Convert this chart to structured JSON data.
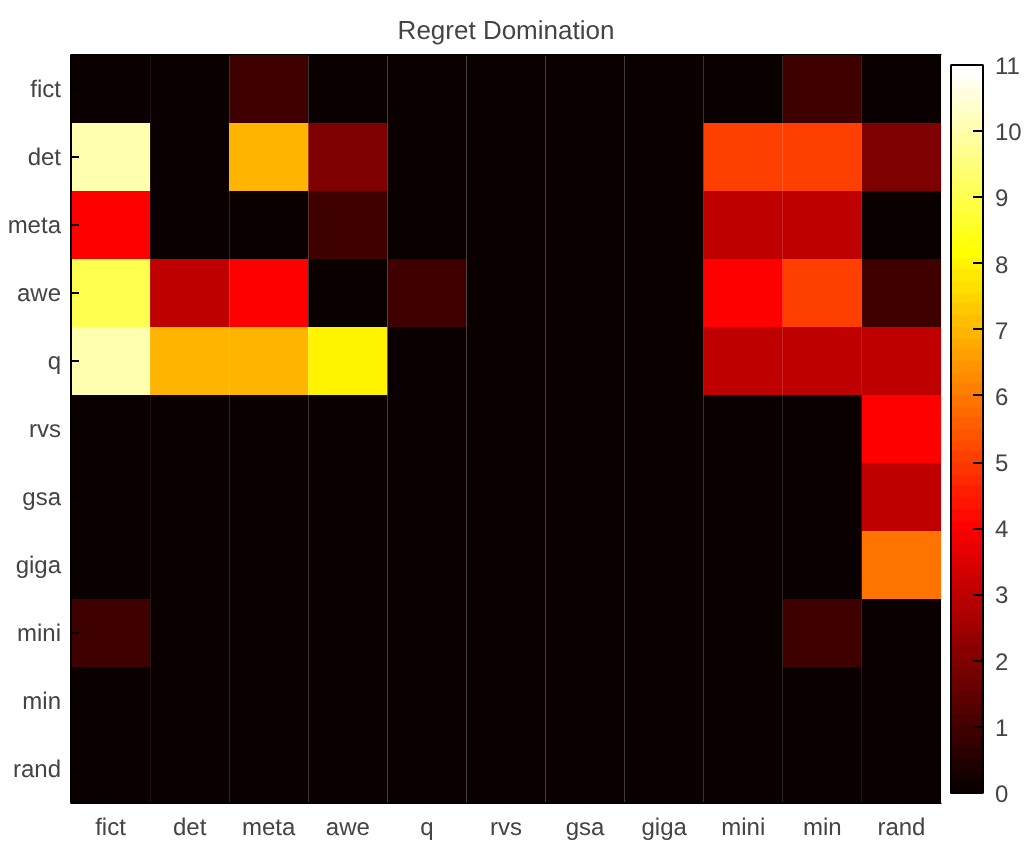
{
  "chart_data": {
    "type": "heatmap",
    "title": "Regret Domination",
    "categories": [
      "fict",
      "det",
      "meta",
      "awe",
      "q",
      "rvs",
      "gsa",
      "giga",
      "mini",
      "min",
      "rand"
    ],
    "y_categories": [
      "fict",
      "det",
      "meta",
      "awe",
      "q",
      "rvs",
      "gsa",
      "giga",
      "mini",
      "min",
      "rand"
    ],
    "cells": [
      [
        0,
        0,
        1,
        0,
        0,
        0,
        0,
        0,
        0,
        1,
        0
      ],
      [
        10,
        0,
        7,
        2,
        0,
        0,
        0,
        0,
        5,
        5,
        2
      ],
      [
        4,
        0,
        0,
        1,
        0,
        0,
        0,
        0,
        3,
        3,
        0
      ],
      [
        9,
        3,
        4,
        0,
        1,
        0,
        0,
        0,
        4,
        5,
        1
      ],
      [
        10,
        7,
        7,
        8,
        0,
        0,
        0,
        0,
        3,
        3,
        3
      ],
      [
        0,
        0,
        0,
        0,
        0,
        0,
        0,
        0,
        0,
        0,
        4
      ],
      [
        0,
        0,
        0,
        0,
        0,
        0,
        0,
        0,
        0,
        0,
        3
      ],
      [
        0,
        0,
        0,
        0,
        0,
        0,
        0,
        0,
        0,
        0,
        6
      ],
      [
        1,
        0,
        0,
        0,
        0,
        0,
        0,
        0,
        0,
        1,
        0
      ],
      [
        0,
        0,
        0,
        0,
        0,
        0,
        0,
        0,
        0,
        0,
        0
      ],
      [
        0,
        0,
        0,
        0,
        0,
        0,
        0,
        0,
        0,
        0,
        0
      ]
    ],
    "clim": [
      0,
      11
    ],
    "cticks": [
      0,
      1,
      2,
      3,
      4,
      5,
      6,
      7,
      8,
      9,
      10,
      11
    ]
  }
}
